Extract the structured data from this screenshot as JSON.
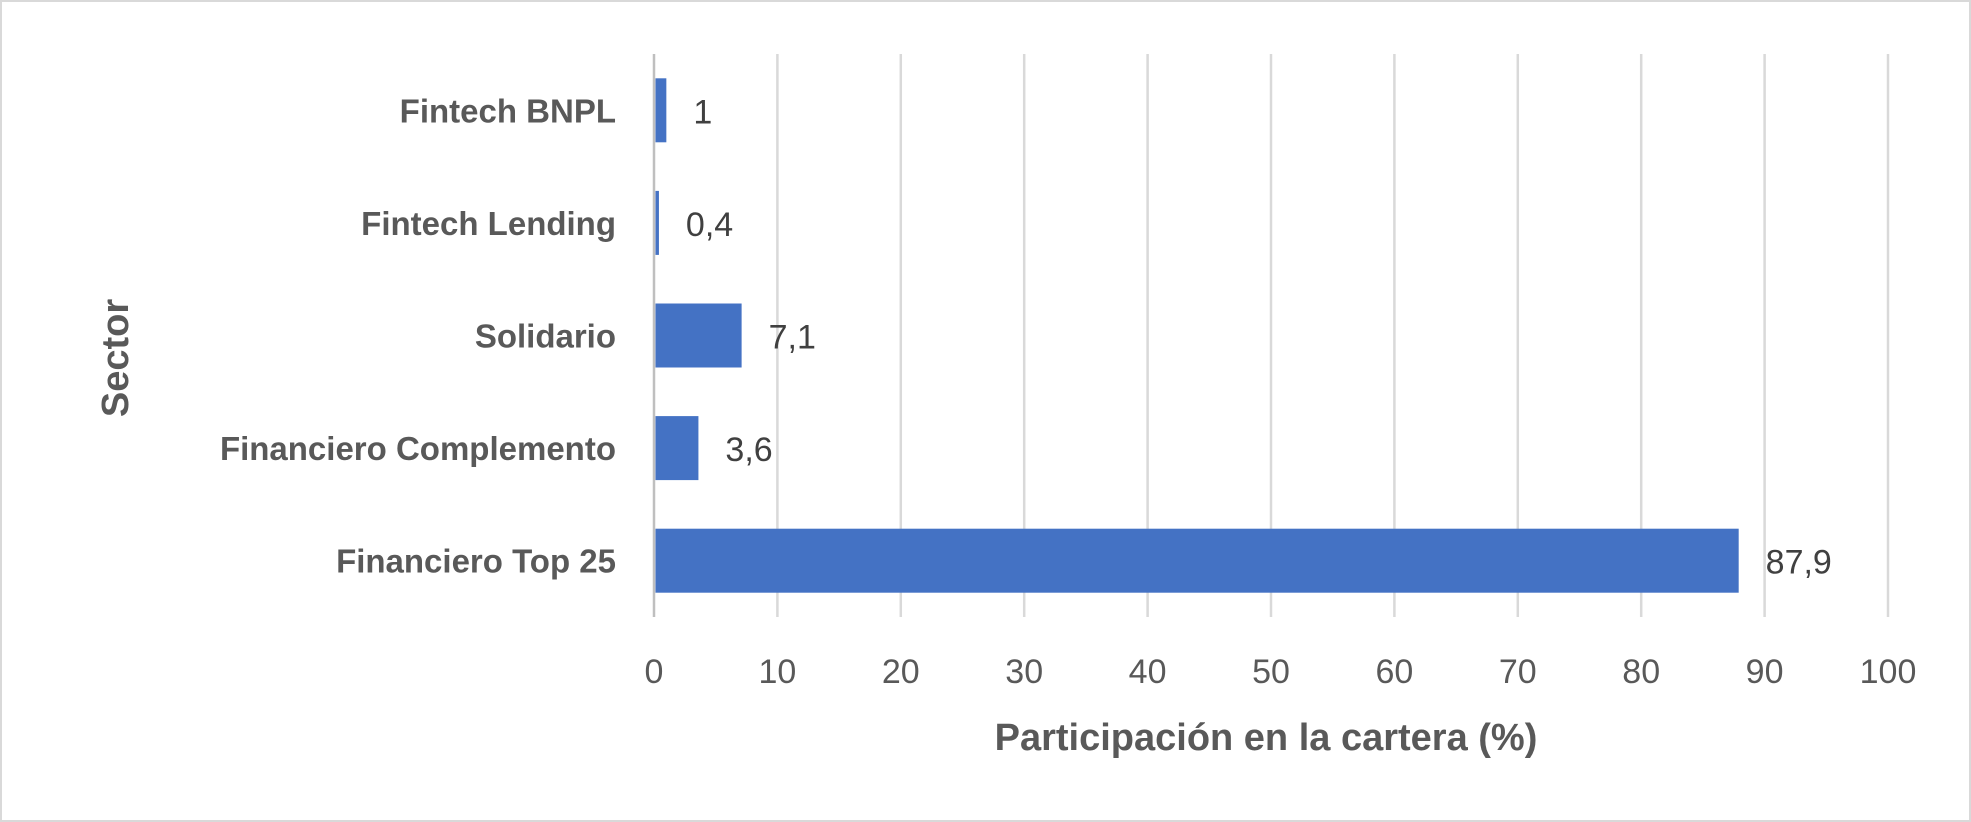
{
  "chart_data": {
    "type": "bar",
    "orientation": "horizontal",
    "categories": [
      "Fintech BNPL",
      "Fintech Lending",
      "Solidario",
      "Financiero Complemento",
      "Financiero Top 25"
    ],
    "values": [
      1,
      0.4,
      7.1,
      3.6,
      87.9
    ],
    "data_labels": [
      "1",
      "0,4",
      "7,1",
      "3,6",
      "87,9"
    ],
    "xlabel": "Participación en la cartera (%)",
    "ylabel": "Sector",
    "xlim": [
      0,
      100
    ],
    "x_ticks": [
      "0",
      "10",
      "20",
      "30",
      "40",
      "50",
      "60",
      "70",
      "80",
      "90",
      "100"
    ],
    "grid": "vertical",
    "legend": "none",
    "bar_color": "#4472c4"
  }
}
